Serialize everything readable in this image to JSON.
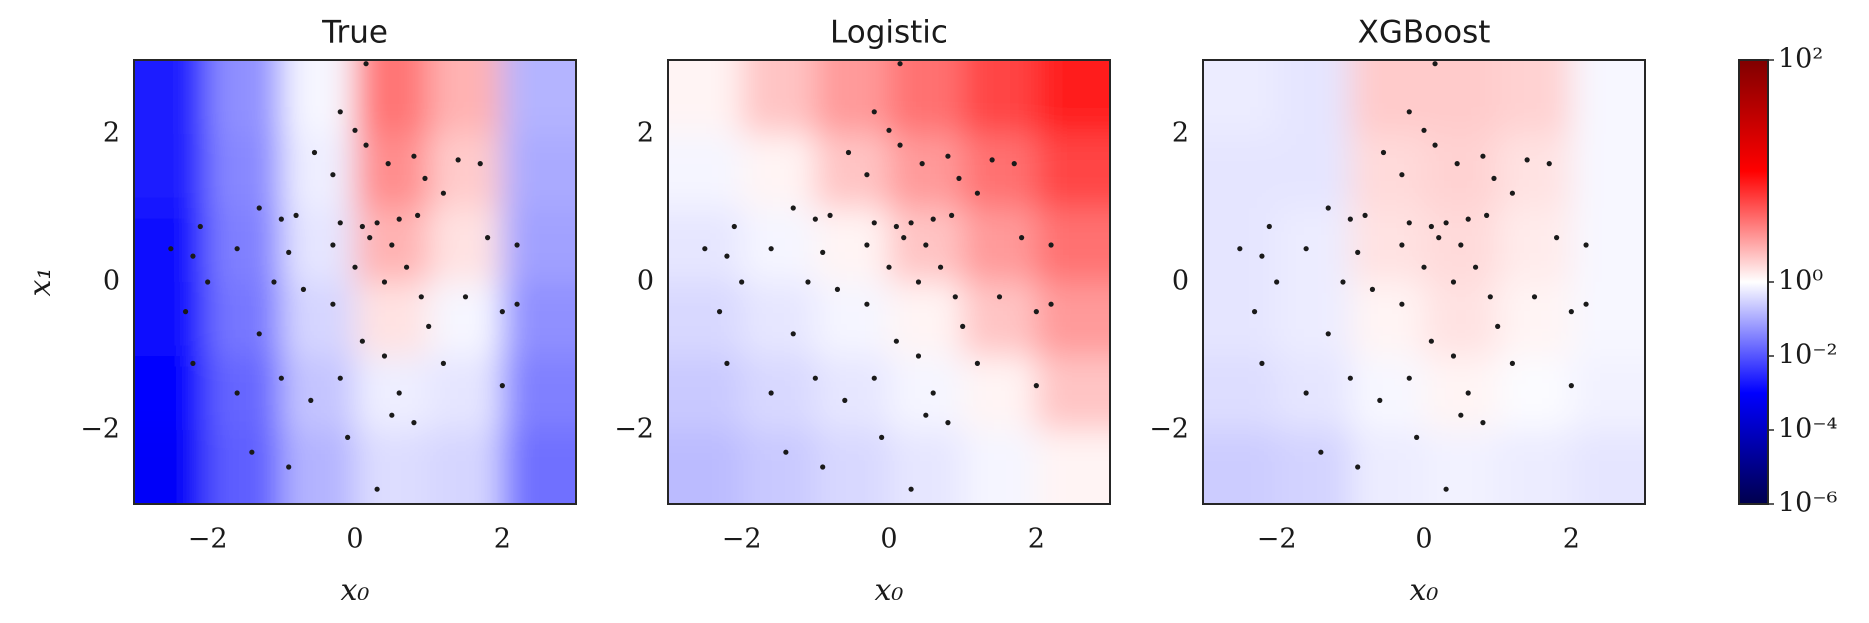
{
  "chart_data": [
    {
      "type": "heatmap",
      "title": "True",
      "xlabel": "x₀",
      "ylabel": "x₁",
      "xlim": [
        -3,
        3
      ],
      "ylim": [
        -3,
        3
      ],
      "xticks": [
        {
          "value": -2,
          "label": "−2"
        },
        0,
        2
      ],
      "yticks": [
        {
          "value": -2,
          "label": "−2"
        },
        0,
        2
      ],
      "field": {
        "x": [
          -2.5,
          -1.5,
          -0.5,
          0.5,
          1.5,
          2.5
        ],
        "y": [
          2.5,
          1.5,
          0.5,
          -0.5,
          -1.5,
          -2.5
        ],
        "z": [
          [
            0.002,
            0.05,
            0.79,
            3.5,
            2.0,
            0.13
          ],
          [
            0.002,
            0.04,
            0.63,
            2.8,
            1.6,
            0.1
          ],
          [
            0.0016,
            0.032,
            0.5,
            2.0,
            1.3,
            0.079
          ],
          [
            0.0013,
            0.025,
            0.32,
            1.3,
            0.79,
            0.05
          ],
          [
            0.001,
            0.016,
            0.2,
            0.63,
            0.5,
            0.032
          ],
          [
            0.0008,
            0.013,
            0.13,
            0.4,
            0.32,
            0.02
          ]
        ]
      },
      "color": "#1a1a1a",
      "x": [
        0.15,
        -0.2,
        0.0,
        0.15,
        -0.55,
        -0.3,
        0.45,
        0.8,
        1.4,
        1.7,
        -1.3,
        -1.0,
        -0.8,
        1.2,
        0.95,
        -0.2,
        0.1,
        0.3,
        0.6,
        0.85,
        -0.3,
        0.2,
        0.5,
        -2.5,
        -2.1,
        -1.6,
        -2.2,
        -0.9,
        -1.1,
        -0.7,
        -2.2,
        -2.3,
        -2.0,
        -1.3,
        -1.0,
        -0.6,
        -1.6,
        -0.2,
        0.1,
        0.4,
        0.6,
        0.5,
        0.8,
        1.2,
        1.0,
        1.5,
        2.0,
        2.2,
        2.0,
        1.8,
        2.2,
        0.4,
        0.0,
        -0.3,
        0.7,
        -1.4,
        -0.1,
        -0.9,
        0.3,
        0.9
      ],
      "y": [
        2.95,
        2.3,
        2.05,
        1.85,
        1.75,
        1.45,
        1.6,
        1.7,
        1.65,
        1.6,
        1.0,
        0.85,
        0.9,
        1.2,
        1.4,
        0.8,
        0.75,
        0.8,
        0.85,
        0.9,
        0.5,
        0.6,
        0.5,
        0.45,
        0.75,
        0.45,
        0.35,
        0.4,
        0.0,
        -0.1,
        -1.1,
        -0.4,
        0.0,
        -0.7,
        -1.3,
        -1.6,
        -1.5,
        -1.3,
        -0.8,
        -1.0,
        -1.5,
        -1.8,
        -1.9,
        -1.1,
        -0.6,
        -0.2,
        -0.4,
        -0.3,
        -1.4,
        0.6,
        0.5,
        0.0,
        0.2,
        -0.3,
        0.2,
        -2.3,
        -2.1,
        -2.5,
        -2.8,
        -0.2
      ]
    },
    {
      "type": "heatmap",
      "title": "Logistic",
      "xlabel": "x₀",
      "xlim": [
        -3,
        3
      ],
      "ylim": [
        -3,
        3
      ],
      "xticks": [
        {
          "value": -2,
          "label": "−2"
        },
        0,
        2
      ],
      "yticks": [
        {
          "value": -2,
          "label": "−2"
        },
        0,
        2
      ],
      "field": {
        "x": [
          -2.5,
          -1.5,
          -0.5,
          0.5,
          1.5,
          2.5
        ],
        "y": [
          2.5,
          1.5,
          0.5,
          -0.5,
          -1.5,
          -2.5
        ],
        "z": [
          [
            1.1,
            1.7,
            2.5,
            3.6,
            5.4,
            7.9
          ],
          [
            0.76,
            1.1,
            1.7,
            2.5,
            3.6,
            5.4
          ],
          [
            0.51,
            0.76,
            1.1,
            1.7,
            2.5,
            3.6
          ],
          [
            0.35,
            0.51,
            0.76,
            1.1,
            1.7,
            2.5
          ],
          [
            0.23,
            0.35,
            0.51,
            0.76,
            1.1,
            1.7
          ],
          [
            0.16,
            0.23,
            0.35,
            0.51,
            0.76,
            1.1
          ]
        ]
      },
      "color": "#1a1a1a",
      "x": [
        0.15,
        -0.2,
        0.0,
        0.15,
        -0.55,
        -0.3,
        0.45,
        0.8,
        1.4,
        1.7,
        -1.3,
        -1.0,
        -0.8,
        1.2,
        0.95,
        -0.2,
        0.1,
        0.3,
        0.6,
        0.85,
        -0.3,
        0.2,
        0.5,
        -2.5,
        -2.1,
        -1.6,
        -2.2,
        -0.9,
        -1.1,
        -0.7,
        -2.2,
        -2.3,
        -2.0,
        -1.3,
        -1.0,
        -0.6,
        -1.6,
        -0.2,
        0.1,
        0.4,
        0.6,
        0.5,
        0.8,
        1.2,
        1.0,
        1.5,
        2.0,
        2.2,
        2.0,
        1.8,
        2.2,
        0.4,
        0.0,
        -0.3,
        0.7,
        -1.4,
        -0.1,
        -0.9,
        0.3,
        0.9
      ],
      "y": [
        2.95,
        2.3,
        2.05,
        1.85,
        1.75,
        1.45,
        1.6,
        1.7,
        1.65,
        1.6,
        1.0,
        0.85,
        0.9,
        1.2,
        1.4,
        0.8,
        0.75,
        0.8,
        0.85,
        0.9,
        0.5,
        0.6,
        0.5,
        0.45,
        0.75,
        0.45,
        0.35,
        0.4,
        0.0,
        -0.1,
        -1.1,
        -0.4,
        0.0,
        -0.7,
        -1.3,
        -1.6,
        -1.5,
        -1.3,
        -0.8,
        -1.0,
        -1.5,
        -1.8,
        -1.9,
        -1.1,
        -0.6,
        -0.2,
        -0.4,
        -0.3,
        -1.4,
        0.6,
        0.5,
        0.0,
        0.2,
        -0.3,
        0.2,
        -2.3,
        -2.1,
        -2.5,
        -2.8,
        -0.2
      ]
    },
    {
      "type": "heatmap",
      "title": "XGBoost",
      "xlabel": "x₀",
      "xlim": [
        -3,
        3
      ],
      "ylim": [
        -3,
        3
      ],
      "xticks": [
        {
          "value": -2,
          "label": "−2"
        },
        0,
        2
      ],
      "yticks": [
        {
          "value": -2,
          "label": "−2"
        },
        0,
        2
      ],
      "field": {
        "x": [
          -2.5,
          -1.5,
          -0.5,
          0.5,
          1.5,
          2.5
        ],
        "y": [
          2.5,
          1.5,
          0.5,
          -0.5,
          -1.5,
          -2.5
        ],
        "z": [
          [
            0.6,
            0.5,
            1.6,
            1.6,
            1.5,
            0.8
          ],
          [
            0.5,
            0.5,
            1.4,
            1.5,
            1.3,
            0.8
          ],
          [
            0.5,
            0.6,
            1.3,
            1.4,
            1.2,
            0.8
          ],
          [
            0.5,
            0.6,
            1.1,
            1.3,
            1.1,
            0.8
          ],
          [
            0.4,
            0.5,
            0.8,
            1.1,
            0.9,
            0.7
          ],
          [
            0.25,
            0.3,
            0.6,
            0.7,
            0.6,
            0.5
          ]
        ]
      },
      "color": "#1a1a1a",
      "x": [
        0.15,
        -0.2,
        0.0,
        0.15,
        -0.55,
        -0.3,
        0.45,
        0.8,
        1.4,
        1.7,
        -1.3,
        -1.0,
        -0.8,
        1.2,
        0.95,
        -0.2,
        0.1,
        0.3,
        0.6,
        0.85,
        -0.3,
        0.2,
        0.5,
        -2.5,
        -2.1,
        -1.6,
        -2.2,
        -0.9,
        -1.1,
        -0.7,
        -2.2,
        -2.3,
        -2.0,
        -1.3,
        -1.0,
        -0.6,
        -1.6,
        -0.2,
        0.1,
        0.4,
        0.6,
        0.5,
        0.8,
        1.2,
        1.0,
        1.5,
        2.0,
        2.2,
        2.0,
        1.8,
        2.2,
        0.4,
        0.0,
        -0.3,
        0.7,
        -1.4,
        -0.1,
        -0.9,
        0.3,
        0.9
      ],
      "y": [
        2.95,
        2.3,
        2.05,
        1.85,
        1.75,
        1.45,
        1.6,
        1.7,
        1.65,
        1.6,
        1.0,
        0.85,
        0.9,
        1.2,
        1.4,
        0.8,
        0.75,
        0.8,
        0.85,
        0.9,
        0.5,
        0.6,
        0.5,
        0.45,
        0.75,
        0.45,
        0.35,
        0.4,
        0.0,
        -0.1,
        -1.1,
        -0.4,
        0.0,
        -0.7,
        -1.3,
        -1.6,
        -1.5,
        -1.3,
        -0.8,
        -1.0,
        -1.5,
        -1.8,
        -1.9,
        -1.1,
        -0.6,
        -0.2,
        -0.4,
        -0.3,
        -1.4,
        0.6,
        0.5,
        0.0,
        0.2,
        -0.3,
        0.2,
        -2.3,
        -2.1,
        -2.5,
        -2.8,
        -0.2
      ]
    },
    {
      "type": "colorbar",
      "colormap": "seismic",
      "log": true,
      "center": 1,
      "clim": [
        1e-06,
        100
      ],
      "cticks": [
        {
          "value": 100,
          "label": "10²"
        },
        {
          "value": 1,
          "label": "10⁰"
        },
        {
          "value": 0.01,
          "label": "10⁻²"
        },
        {
          "value": 0.0001,
          "label": "10⁻⁴"
        },
        {
          "value": 1e-06,
          "label": "10⁻⁶"
        }
      ]
    }
  ]
}
